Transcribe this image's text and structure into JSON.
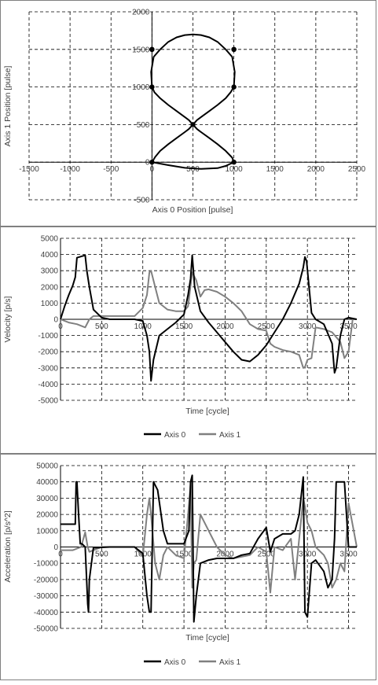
{
  "chart_data": [
    {
      "type": "scatter",
      "xlabel": "Axis 0 Position [pulse]",
      "ylabel": "Axis 1 Position [pulse]",
      "xlim": [
        -1500,
        2500
      ],
      "ylim": [
        -500,
        2000
      ],
      "xticks": [
        "-1500",
        "-1000",
        "-500",
        "0",
        "500",
        "1000",
        "1500",
        "2000",
        "2500"
      ],
      "yticks": [
        "-500",
        "0",
        "500",
        "1000",
        "1500",
        "2000"
      ],
      "grid": true,
      "series": [
        {
          "x": [
            0,
            40,
            100,
            200,
            300,
            400,
            450,
            500,
            550,
            600,
            700,
            800,
            900,
            960,
            1000,
            1010,
            980,
            900,
            800,
            700,
            600,
            500,
            400,
            300,
            200,
            100,
            20,
            -10,
            0,
            30,
            100,
            200,
            300,
            400,
            450,
            500,
            550,
            600,
            700,
            800,
            900,
            980,
            1000,
            900,
            800,
            600,
            400,
            200,
            0
          ],
          "y": [
            0,
            70,
            150,
            240,
            320,
            400,
            440,
            500,
            560,
            600,
            680,
            760,
            850,
            930,
            1000,
            1200,
            1400,
            1500,
            1600,
            1660,
            1690,
            1700,
            1690,
            1660,
            1600,
            1500,
            1400,
            1200,
            1000,
            930,
            850,
            760,
            680,
            600,
            560,
            500,
            440,
            400,
            320,
            240,
            150,
            60,
            0,
            -50,
            -80,
            -90,
            -75,
            -40,
            0
          ]
        }
      ],
      "markers": {
        "x": [
          0,
          1000,
          0,
          1000,
          500,
          0,
          1000,
          0,
          1000
        ],
        "y": [
          1500,
          1500,
          1000,
          1000,
          500,
          0,
          0,
          1500,
          1500
        ]
      }
    },
    {
      "type": "line",
      "xlabel": "Time [cycle]",
      "ylabel": "Velocity [p/s]",
      "xlim": [
        0,
        3600
      ],
      "ylim": [
        -5000,
        5000
      ],
      "xticks": [
        "0",
        "500",
        "1000",
        "1500",
        "2000",
        "2500",
        "3000",
        "3500"
      ],
      "yticks": [
        "-5000",
        "-4000",
        "-3000",
        "-2000",
        "-1000",
        "0",
        "1000",
        "2000",
        "3000",
        "4000",
        "5000"
      ],
      "grid": true,
      "legend": "bottom",
      "series": [
        {
          "name": "Axis 0",
          "color": "#000000",
          "x": [
            0,
            50,
            100,
            150,
            180,
            200,
            300,
            320,
            350,
            400,
            500,
            600,
            700,
            800,
            900,
            1000,
            1050,
            1080,
            1100,
            1130,
            1200,
            1300,
            1400,
            1500,
            1550,
            1580,
            1600,
            1630,
            1700,
            1800,
            1900,
            2000,
            2100,
            2200,
            2300,
            2400,
            2500,
            2600,
            2700,
            2800,
            2900,
            2950,
            2970,
            2990,
            3050,
            3100,
            3200,
            3300,
            3330,
            3350,
            3400,
            3450,
            3500,
            3600
          ],
          "y": [
            0,
            800,
            1500,
            2100,
            2600,
            3800,
            3950,
            3000,
            2000,
            600,
            100,
            0,
            0,
            0,
            0,
            -100,
            -1000,
            -2000,
            -3800,
            -2500,
            -1000,
            -600,
            -200,
            300,
            1500,
            2500,
            3950,
            2000,
            500,
            -200,
            -800,
            -1400,
            -2000,
            -2500,
            -2600,
            -2200,
            -1600,
            -800,
            0,
            1000,
            2200,
            3200,
            3850,
            3600,
            400,
            0,
            -300,
            -1500,
            -3300,
            -3000,
            -1000,
            0,
            100,
            0
          ]
        },
        {
          "name": "Axis 1",
          "color": "#808080",
          "x": [
            0,
            100,
            200,
            300,
            350,
            400,
            500,
            700,
            900,
            1000,
            1050,
            1080,
            1100,
            1150,
            1200,
            1300,
            1400,
            1500,
            1550,
            1600,
            1650,
            1700,
            1750,
            1800,
            1900,
            2000,
            2100,
            2200,
            2300,
            2400,
            2500,
            2550,
            2600,
            2700,
            2800,
            2900,
            2950,
            2970,
            3000,
            3050,
            3100,
            3200,
            3300,
            3400,
            3450,
            3500,
            3550,
            3600
          ],
          "y": [
            0,
            -200,
            -300,
            -500,
            0,
            200,
            200,
            200,
            200,
            700,
            1500,
            2900,
            3000,
            2000,
            1000,
            600,
            500,
            500,
            800,
            2900,
            2400,
            1400,
            1800,
            1850,
            1700,
            1400,
            1000,
            500,
            -300,
            -600,
            -700,
            -1500,
            -1700,
            -1900,
            -2000,
            -2200,
            -3000,
            -2950,
            -2500,
            -2400,
            -500,
            -600,
            -800,
            -1400,
            -2400,
            -2000,
            0,
            0
          ]
        }
      ]
    },
    {
      "type": "line",
      "xlabel": "Time [cycle]",
      "ylabel": "Acceleration [p/s^2]",
      "xlim": [
        0,
        3600
      ],
      "ylim": [
        -50000,
        50000
      ],
      "xticks": [
        "0",
        "500",
        "1000",
        "1500",
        "2000",
        "2500",
        "3000",
        "3500"
      ],
      "yticks": [
        "-50000",
        "-40000",
        "-30000",
        "-20000",
        "-10000",
        "0",
        "10000",
        "20000",
        "30000",
        "40000",
        "50000"
      ],
      "grid": true,
      "legend": "bottom",
      "series": [
        {
          "name": "Axis 0",
          "color": "#000000",
          "x": [
            0,
            180,
            190,
            200,
            220,
            240,
            250,
            260,
            300,
            330,
            340,
            350,
            400,
            600,
            900,
            1000,
            1050,
            1080,
            1100,
            1130,
            1180,
            1250,
            1300,
            1400,
            1500,
            1560,
            1580,
            1600,
            1620,
            1650,
            1700,
            1800,
            1900,
            2000,
            2100,
            2200,
            2300,
            2400,
            2500,
            2550,
            2600,
            2700,
            2800,
            2850,
            2900,
            2950,
            2970,
            3000,
            3050,
            3100,
            3200,
            3250,
            3300,
            3330,
            3350,
            3400,
            3450,
            3500,
            3600
          ],
          "y": [
            14000,
            14000,
            40000,
            40000,
            20000,
            2000,
            2000,
            2000,
            0,
            -35000,
            -40000,
            -20000,
            -500,
            0,
            0,
            -4000,
            -30000,
            -40000,
            -40000,
            40000,
            35000,
            10000,
            2000,
            2000,
            2000,
            10000,
            40000,
            44000,
            -46000,
            -30000,
            -10000,
            -8000,
            -7000,
            -7000,
            -7000,
            -5000,
            -4000,
            5000,
            12000,
            -3000,
            5000,
            8000,
            8000,
            10000,
            20000,
            43000,
            -40000,
            -43000,
            -10000,
            -8000,
            -15000,
            -25000,
            -20000,
            5000,
            40000,
            40000,
            40000,
            0,
            0
          ]
        },
        {
          "name": "Axis 1",
          "color": "#808080",
          "x": [
            0,
            150,
            250,
            300,
            330,
            350,
            400,
            500,
            700,
            900,
            1000,
            1050,
            1080,
            1100,
            1150,
            1200,
            1250,
            1300,
            1400,
            1500,
            1550,
            1580,
            1600,
            1620,
            1650,
            1700,
            1800,
            1900,
            2000,
            2100,
            2200,
            2300,
            2400,
            2500,
            2550,
            2600,
            2700,
            2800,
            2850,
            2900,
            2950,
            2970,
            3000,
            3050,
            3100,
            3200,
            3250,
            3300,
            3350,
            3400,
            3450,
            3500,
            3600
          ],
          "y": [
            -2000,
            -2000,
            0,
            9000,
            0,
            -3000,
            -2000,
            0,
            0,
            0,
            -6000,
            20000,
            30000,
            20000,
            -10000,
            -20000,
            -5000,
            0,
            -5000,
            -7000,
            20000,
            38000,
            -25000,
            -10000,
            -8000,
            20000,
            10000,
            0,
            -5000,
            -7000,
            -6000,
            -5000,
            0,
            -3000,
            -28000,
            0,
            -2000,
            5000,
            -20000,
            5000,
            30000,
            25000,
            15000,
            10000,
            0,
            -5000,
            -10000,
            -25000,
            -20000,
            -10000,
            -15000,
            27000,
            0
          ]
        }
      ]
    }
  ]
}
